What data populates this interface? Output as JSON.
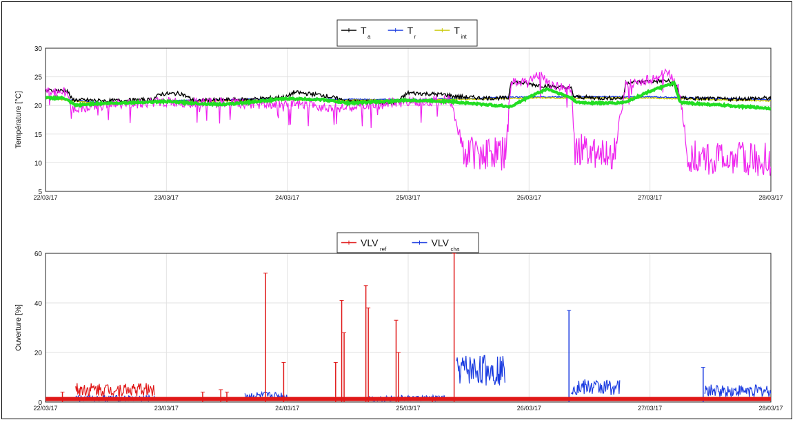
{
  "chart_data": [
    {
      "type": "line",
      "title": "",
      "ylabel": "Température [°C]",
      "xlabel": "",
      "ylim": [
        5,
        30
      ],
      "yticks": [
        5,
        10,
        15,
        20,
        25,
        30
      ],
      "xlim": [
        0,
        6
      ],
      "xtick_labels": [
        "22/03/17",
        "23/03/17",
        "24/03/17",
        "25/03/17",
        "26/03/17",
        "27/03/17",
        "28/03/17"
      ],
      "grid": true,
      "legend": {
        "placement": "top-center"
      },
      "series": [
        {
          "name": "T",
          "subscript": "a",
          "color": "#000000",
          "points": [
            [
              0,
              22.6
            ],
            [
              0.18,
              22.6
            ],
            [
              0.22,
              21.0
            ],
            [
              0.5,
              20.8
            ],
            [
              0.88,
              21.0
            ],
            [
              0.95,
              22.0
            ],
            [
              1.12,
              22.1
            ],
            [
              1.25,
              20.6
            ],
            [
              1.3,
              20.9
            ],
            [
              1.6,
              21.0
            ],
            [
              1.8,
              21.2
            ],
            [
              2.0,
              21.5
            ],
            [
              2.05,
              22.3
            ],
            [
              2.3,
              21.8
            ],
            [
              2.5,
              20.7
            ],
            [
              2.9,
              20.5
            ],
            [
              3.0,
              22.2
            ],
            [
              3.3,
              21.9
            ],
            [
              3.38,
              21.6
            ],
            [
              3.6,
              21.3
            ],
            [
              3.83,
              21.3
            ],
            [
              3.85,
              24.2
            ],
            [
              4.05,
              23.6
            ],
            [
              4.2,
              23.3
            ],
            [
              4.35,
              23.0
            ],
            [
              4.37,
              21.5
            ],
            [
              4.6,
              21.3
            ],
            [
              4.78,
              21.3
            ],
            [
              4.8,
              24.0
            ],
            [
              5.0,
              24.2
            ],
            [
              5.15,
              24.3
            ],
            [
              5.22,
              23.4
            ],
            [
              5.25,
              21.3
            ],
            [
              5.6,
              21.1
            ],
            [
              6.0,
              21.3
            ]
          ]
        },
        {
          "name": "T",
          "subscript": "r",
          "color": "#1a3be0",
          "points": [
            [
              0,
              21.4
            ],
            [
              0.5,
              20.4
            ],
            [
              1.0,
              20.8
            ],
            [
              2.0,
              21.2
            ],
            [
              3.0,
              21.0
            ],
            [
              4.0,
              21.5
            ],
            [
              5.0,
              21.5
            ],
            [
              6.0,
              21.0
            ]
          ]
        },
        {
          "name": "T",
          "subscript": "int",
          "color": "#c8c800",
          "points": [
            [
              0,
              21.3
            ],
            [
              0.5,
              20.2
            ],
            [
              1.0,
              20.7
            ],
            [
              2.0,
              21.0
            ],
            [
              3.0,
              20.9
            ],
            [
              4.0,
              21.3
            ],
            [
              5.0,
              21.3
            ],
            [
              6.0,
              20.8
            ]
          ]
        },
        {
          "name": "",
          "color": "#ee22ee",
          "points": [
            [
              0,
              22.3
            ],
            [
              0.18,
              22.3
            ],
            [
              0.22,
              19.5
            ],
            [
              0.5,
              20.1
            ],
            [
              1.0,
              20.6
            ],
            [
              1.5,
              20.4
            ],
            [
              2.0,
              20.1
            ],
            [
              2.5,
              19.6
            ],
            [
              3.0,
              20.7
            ],
            [
              3.35,
              21.0
            ],
            [
              3.45,
              12.0
            ],
            [
              3.8,
              11.5
            ],
            [
              3.85,
              23.8
            ],
            [
              4.0,
              24.6
            ],
            [
              4.1,
              25.2
            ],
            [
              4.2,
              23.4
            ],
            [
              4.35,
              22.8
            ],
            [
              4.38,
              12.5
            ],
            [
              4.7,
              11.5
            ],
            [
              4.8,
              23.5
            ],
            [
              5.0,
              24.5
            ],
            [
              5.15,
              25.8
            ],
            [
              5.25,
              22.5
            ],
            [
              5.3,
              11.0
            ],
            [
              6.0,
              10.5
            ]
          ]
        },
        {
          "name": "",
          "color": "#22dd22",
          "points": [
            [
              0,
              21.3
            ],
            [
              0.15,
              21.3
            ],
            [
              0.25,
              20.0
            ],
            [
              0.4,
              20.3
            ],
            [
              1.0,
              20.7
            ],
            [
              1.3,
              20.3
            ],
            [
              1.5,
              20.2
            ],
            [
              2.0,
              21.2
            ],
            [
              2.3,
              21.0
            ],
            [
              2.5,
              20.4
            ],
            [
              3.0,
              20.9
            ],
            [
              3.35,
              20.7
            ],
            [
              3.5,
              20.4
            ],
            [
              3.85,
              19.8
            ],
            [
              4.0,
              21.5
            ],
            [
              4.15,
              22.9
            ],
            [
              4.35,
              21.3
            ],
            [
              4.4,
              20.5
            ],
            [
              4.7,
              20.4
            ],
            [
              4.8,
              20.6
            ],
            [
              5.0,
              22.5
            ],
            [
              5.2,
              23.9
            ],
            [
              5.25,
              20.5
            ],
            [
              6.0,
              19.5
            ]
          ]
        }
      ]
    },
    {
      "type": "line",
      "title": "",
      "ylabel": "Ouverture [%]",
      "xlabel": "",
      "ylim": [
        0,
        60
      ],
      "yticks": [
        0,
        20,
        40,
        60
      ],
      "xlim": [
        0,
        6
      ],
      "xtick_labels": [
        "22/03/17",
        "23/03/17",
        "24/03/17",
        "25/03/17",
        "26/03/17",
        "27/03/17",
        "28/03/17"
      ],
      "grid": true,
      "legend": {
        "placement": "top-center"
      },
      "series": [
        {
          "name": "VLV",
          "subscript": "ref",
          "color": "#e01818",
          "baseline": 1.5,
          "segments": [
            [
              0.25,
              0.9,
              5
            ]
          ],
          "spikes": [
            [
              0.14,
              4
            ],
            [
              1.3,
              4
            ],
            [
              1.45,
              5
            ],
            [
              1.5,
              4
            ],
            [
              1.82,
              52
            ],
            [
              1.97,
              16
            ],
            [
              2.4,
              16
            ],
            [
              2.45,
              41
            ],
            [
              2.47,
              28
            ],
            [
              2.65,
              47
            ],
            [
              2.67,
              38
            ],
            [
              2.9,
              33
            ],
            [
              2.92,
              20
            ],
            [
              3.2,
              1
            ],
            [
              3.38,
              60
            ]
          ]
        },
        {
          "name": "VLV",
          "subscript": "cha",
          "color": "#1a3be0",
          "baseline": 0.5,
          "segments": [
            [
              0.25,
              0.9,
              1.5
            ],
            [
              1.65,
              2.0,
              2.5
            ],
            [
              2.65,
              3.3,
              1.5
            ],
            [
              3.4,
              3.8,
              13
            ],
            [
              4.35,
              4.75,
              6
            ],
            [
              5.45,
              6.0,
              4.5
            ]
          ],
          "spikes": [
            [
              4.33,
              37
            ],
            [
              5.44,
              14
            ]
          ]
        }
      ]
    }
  ]
}
